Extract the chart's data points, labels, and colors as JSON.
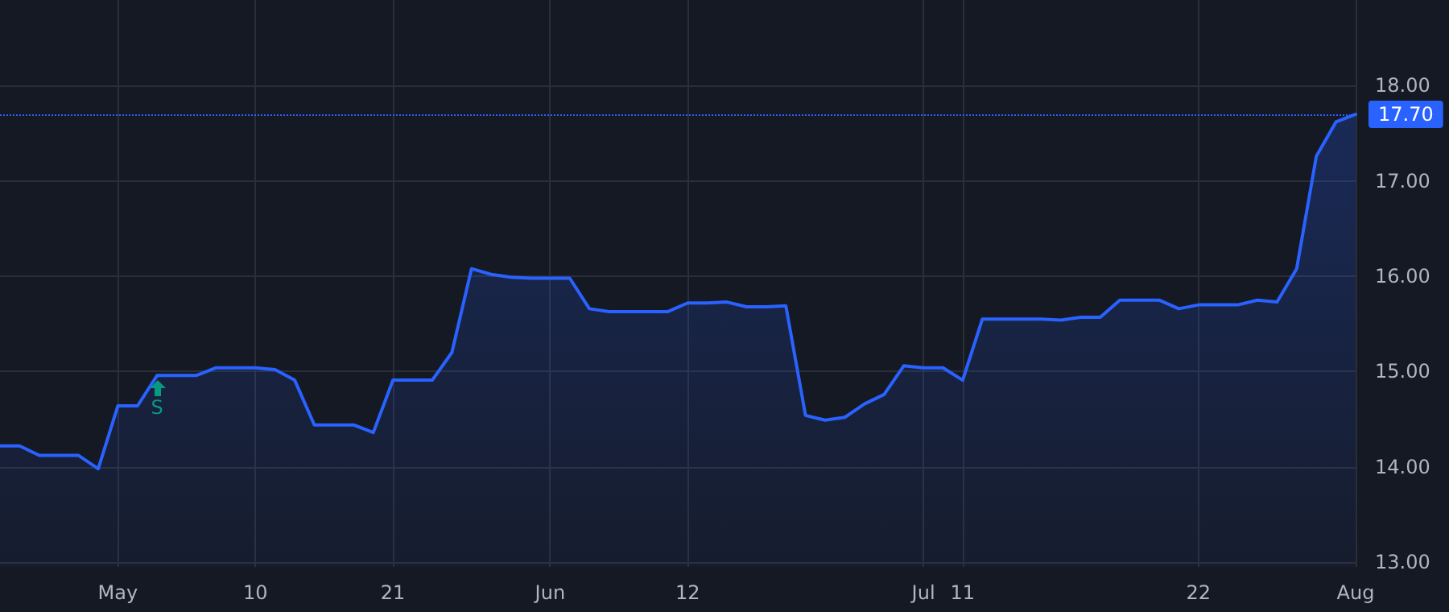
{
  "chart_data": {
    "type": "area",
    "categories": [
      null,
      null,
      null,
      null,
      null,
      null,
      "May",
      null,
      null,
      null,
      null,
      null,
      null,
      "10",
      null,
      null,
      null,
      null,
      null,
      null,
      "21",
      null,
      null,
      null,
      null,
      null,
      null,
      null,
      "Jun",
      null,
      null,
      null,
      null,
      null,
      null,
      "12",
      null,
      null,
      null,
      null,
      null,
      null,
      null,
      null,
      null,
      null,
      null,
      "Jul",
      null,
      "11",
      null,
      null,
      null,
      null,
      null,
      null,
      null,
      null,
      null,
      null,
      null,
      "22",
      null,
      null,
      null,
      null,
      null,
      null,
      null,
      "Aug"
    ],
    "series": [
      {
        "color": "#2962ff",
        "values": [
          14.22,
          14.22,
          14.12,
          14.12,
          14.12,
          13.98,
          14.64,
          14.64,
          14.96,
          14.96,
          14.96,
          15.04,
          15.04,
          15.04,
          15.02,
          14.91,
          14.44,
          14.44,
          14.44,
          14.36,
          14.91,
          14.91,
          14.91,
          15.2,
          16.08,
          16.02,
          15.99,
          15.98,
          15.98,
          15.98,
          15.66,
          15.63,
          15.63,
          15.63,
          15.63,
          15.72,
          15.72,
          15.73,
          15.68,
          15.68,
          15.69,
          14.54,
          14.49,
          14.52,
          14.66,
          14.76,
          15.06,
          15.04,
          15.04,
          14.91,
          15.55,
          15.55,
          15.55,
          15.55,
          15.54,
          15.57,
          15.57,
          15.75,
          15.75,
          15.75,
          15.66,
          15.7,
          15.7,
          15.7,
          15.75,
          15.73,
          16.08,
          17.26,
          17.62,
          17.7
        ]
      }
    ],
    "ylim": [
      12.95,
      18.9
    ],
    "yticks": [
      {
        "value": 13,
        "label": "13.00"
      },
      {
        "value": 14,
        "label": "14.00"
      },
      {
        "value": 15,
        "label": "15.00"
      },
      {
        "value": 16,
        "label": "16.00"
      },
      {
        "value": 17,
        "label": "17.00"
      },
      {
        "value": 18,
        "label": "18.00"
      }
    ],
    "ref_lines": [
      {
        "axis": "y",
        "value": 17.7,
        "label": "17.70",
        "color": "#2962ff",
        "line_style": "dotted"
      }
    ],
    "annotations": [
      "S"
    ],
    "grid": true,
    "marker": "none",
    "line_style": "solid"
  }
}
